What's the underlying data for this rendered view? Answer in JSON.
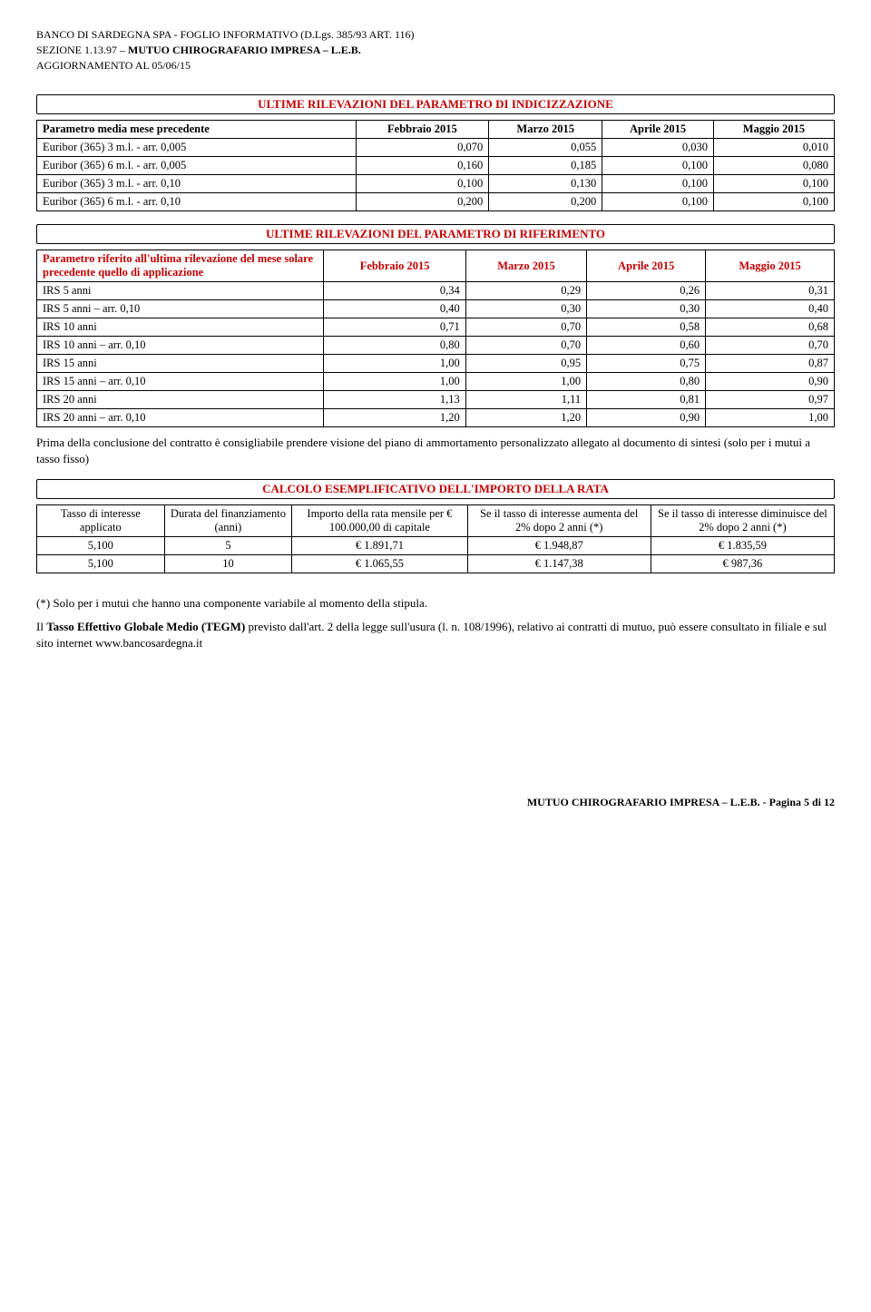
{
  "header": {
    "line1": "BANCO DI SARDEGNA SPA - FOGLIO INFORMATIVO (D.Lgs. 385/93 ART. 116)",
    "line2_a": "SEZIONE 1.13.97 – ",
    "line2_b": "MUTUO CHIROGRAFARIO IMPRESA – L.E.B.",
    "line3": "AGGIORNAMENTO AL  05/06/15"
  },
  "section1": {
    "title": "ULTIME RILEVAZIONI DEL PARAMETRO DI INDICIZZAZIONE",
    "row_header_label": "Parametro media mese precedente",
    "colheads": [
      "Febbraio 2015",
      "Marzo 2015",
      "Aprile 2015",
      "Maggio 2015"
    ],
    "rows": [
      {
        "label": "Euribor (365) 3 m.l.  -  arr. 0,005",
        "vals": [
          "0,070",
          "0,055",
          "0,030",
          "0,010"
        ]
      },
      {
        "label": "Euribor (365) 6 m.l.  -  arr. 0,005",
        "vals": [
          "0,160",
          "0,185",
          "0,100",
          "0,080"
        ]
      },
      {
        "label": "Euribor (365) 3 m.l.  -  arr. 0,10",
        "vals": [
          "0,100",
          "0,130",
          "0,100",
          "0,100"
        ]
      },
      {
        "label": "Euribor (365) 6 m.l.   - arr. 0,10",
        "vals": [
          "0,200",
          "0,200",
          "0,100",
          "0,100"
        ]
      }
    ]
  },
  "section2": {
    "title": "ULTIME RILEVAZIONI DEL PARAMETRO DI RIFERIMENTO",
    "row_header_label": "Parametro riferito all'ultima rilevazione del mese solare precedente quello di applicazione",
    "colheads": [
      "Febbraio 2015",
      "Marzo 2015",
      "Aprile 2015",
      "Maggio 2015"
    ],
    "rows": [
      {
        "label": "IRS 5 anni",
        "vals": [
          "0,34",
          "0,29",
          "0,26",
          "0,31"
        ]
      },
      {
        "label": "IRS 5 anni –  arr. 0,10",
        "vals": [
          "0,40",
          "0,30",
          "0,30",
          "0,40"
        ]
      },
      {
        "label": "IRS 10 anni",
        "vals": [
          "0,71",
          "0,70",
          "0,58",
          "0,68"
        ]
      },
      {
        "label": "IRS 10 anni – arr. 0,10",
        "vals": [
          "0,80",
          "0,70",
          "0,60",
          "0,70"
        ]
      },
      {
        "label": "IRS 15 anni",
        "vals": [
          "1,00",
          "0,95",
          "0,75",
          "0,87"
        ]
      },
      {
        "label": "IRS 15 anni – arr. 0,10",
        "vals": [
          "1,00",
          "1,00",
          "0,80",
          "0,90"
        ]
      },
      {
        "label": "IRS 20 anni",
        "vals": [
          "1,13",
          "1,11",
          "0,81",
          "0,97"
        ]
      },
      {
        "label": "IRS 20 anni – arr. 0,10",
        "vals": [
          "1,20",
          "1,20",
          "0,90",
          "1,00"
        ]
      }
    ]
  },
  "para1": "Prima della conclusione del contratto è consigliabile prendere visione del piano di ammortamento personalizzato allegato al documento di sintesi (solo per i mutui a tasso fisso)",
  "section3": {
    "title": "CALCOLO ESEMPLIFICATIVO DELL'IMPORTO DELLA RATA",
    "heads": [
      "Tasso di interesse applicato",
      "Durata del finanziamento (anni)",
      "Importo della rata mensile per € 100.000,00 di capitale",
      "Se il tasso di interesse aumenta del 2% dopo 2 anni\n(*)",
      "Se il tasso di interesse diminuisce del 2% dopo 2 anni\n(*)"
    ],
    "rows": [
      {
        "vals": [
          "5,100",
          "5",
          "€ 1.891,71",
          "€ 1.948,87",
          "€ 1.835,59"
        ]
      },
      {
        "vals": [
          "5,100",
          "10",
          "€ 1.065,55",
          "€ 1.147,38",
          "€ 987,36"
        ]
      }
    ]
  },
  "para2": "(*) Solo per i mutui che hanno una componente variabile al momento della stipula.",
  "para3_a": "Il ",
  "para3_b": "Tasso Effettivo Globale Medio (TEGM)",
  "para3_c": " previsto dall'art. 2 della legge sull'usura (l. n. 108/1996), relativo ai contratti di mutuo, può essere consultato in filiale e sul sito internet www.bancosardegna.it",
  "footer": "MUTUO CHIROGRAFARIO IMPRESA – L.E.B. - Pagina 5 di 12"
}
